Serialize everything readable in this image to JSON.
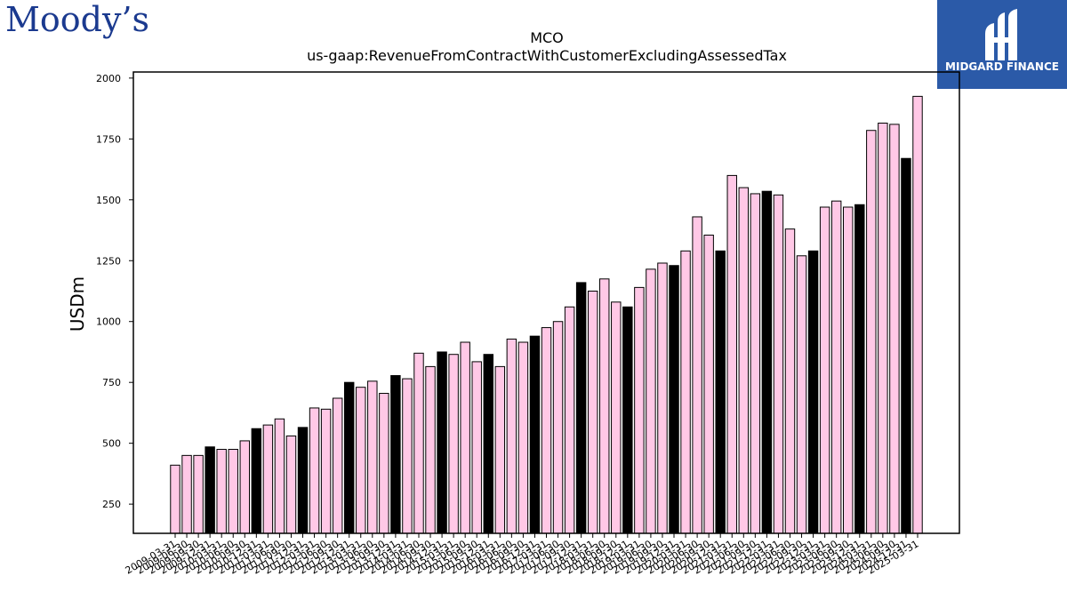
{
  "branding": {
    "left_logo_text": "Moody’s",
    "right_logo_text": "MIDGARD FINANCE",
    "right_logo_color": "#2b5aa8",
    "left_logo_color": "#1b3a8f"
  },
  "chart_data": {
    "type": "bar",
    "title": "MCO",
    "subtitle": "us-gaap:RevenueFromContractWithCustomerExcludingAssessedTax",
    "ylabel": "USDm",
    "xlabel": "",
    "ylim": [
      130,
      2025
    ],
    "yticks": [
      250,
      500,
      750,
      1000,
      1250,
      1500,
      1750,
      2000
    ],
    "grid": false,
    "colors": {
      "quarter": "#ffc8e6",
      "fiscal_year_end": "#000000",
      "edge": "#000000"
    },
    "categories": [
      "2009-03-31",
      "2009-06-30",
      "2009-09-30",
      "2009-12-31",
      "2010-03-31",
      "2010-06-30",
      "2010-09-30",
      "2010-12-31",
      "2011-03-31",
      "2011-06-30",
      "2011-09-30",
      "2011-12-31",
      "2012-03-31",
      "2012-06-30",
      "2012-09-30",
      "2012-12-31",
      "2013-03-31",
      "2013-06-30",
      "2013-09-30",
      "2013-12-31",
      "2014-03-31",
      "2014-06-30",
      "2014-09-30",
      "2014-12-31",
      "2015-03-31",
      "2015-06-30",
      "2015-09-30",
      "2015-12-31",
      "2016-03-31",
      "2016-06-30",
      "2016-09-30",
      "2016-12-31",
      "2017-03-31",
      "2017-06-30",
      "2017-09-30",
      "2017-12-31",
      "2018-03-31",
      "2018-06-30",
      "2018-09-30",
      "2018-12-31",
      "2019-03-31",
      "2019-06-30",
      "2019-09-30",
      "2019-12-31",
      "2020-03-31",
      "2020-06-30",
      "2020-09-30",
      "2020-12-31",
      "2021-03-31",
      "2021-06-30",
      "2021-09-30",
      "2021-12-31",
      "2022-03-31",
      "2022-06-30",
      "2022-09-30",
      "2022-12-31",
      "2023-03-31",
      "2023-06-30",
      "2023-09-30",
      "2023-12-31",
      "2024-03-31",
      "2024-06-30",
      "2024-09-30",
      "2024-12-31",
      "2025-03-31"
    ],
    "values": [
      410,
      450,
      450,
      485,
      475,
      475,
      510,
      560,
      575,
      600,
      530,
      565,
      645,
      640,
      685,
      750,
      730,
      755,
      705,
      778,
      765,
      870,
      815,
      875,
      865,
      915,
      835,
      865,
      815,
      928,
      915,
      940,
      975,
      1000,
      1060,
      1160,
      1125,
      1175,
      1080,
      1060,
      1140,
      1215,
      1240,
      1230,
      1290,
      1430,
      1355,
      1290,
      1600,
      1550,
      1525,
      1535,
      1520,
      1380,
      1270,
      1290,
      1470,
      1495,
      1470,
      1480,
      1785,
      1815,
      1810,
      1670,
      1925
    ],
    "highlight_black_indices": [
      3,
      7,
      11,
      15,
      19,
      23,
      27,
      31,
      35,
      39,
      43,
      47,
      51,
      55,
      59,
      63
    ]
  }
}
